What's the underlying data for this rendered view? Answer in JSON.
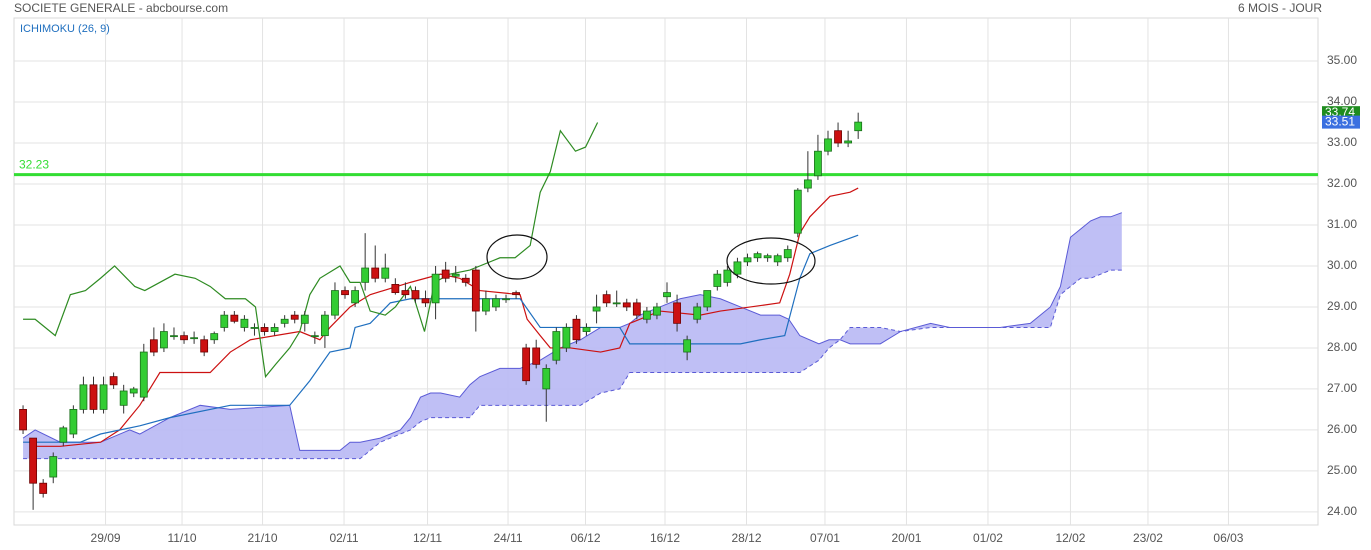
{
  "chart_data": {
    "type": "candlestick",
    "title": "SOCIETE GENERALE - abcbourse.com",
    "subtitle": "6 MOIS - JOUR",
    "indicator": "ICHIMOKU (26, 9)",
    "xlim": [
      -0.9,
      128.7
    ],
    "xticks": [
      {
        "value": 8.2,
        "label": "29/09"
      },
      {
        "value": 15.8,
        "label": "11/10"
      },
      {
        "value": 23.8,
        "label": "21/10"
      },
      {
        "value": 31.9,
        "label": "02/11"
      },
      {
        "value": 40.2,
        "label": "12/11"
      },
      {
        "value": 48.2,
        "label": "24/11"
      },
      {
        "value": 55.9,
        "label": "06/12"
      },
      {
        "value": 63.8,
        "label": "16/12"
      },
      {
        "value": 71.9,
        "label": "28/12"
      },
      {
        "value": 79.7,
        "label": "07/01"
      },
      {
        "value": 87.8,
        "label": "20/01"
      },
      {
        "value": 95.9,
        "label": "01/02"
      },
      {
        "value": 104.1,
        "label": "12/02"
      },
      {
        "value": 111.8,
        "label": "23/02"
      },
      {
        "value": 119.8,
        "label": "06/03"
      }
    ],
    "ylim": [
      23.68,
      36.05
    ],
    "yticks": [
      {
        "value": 24,
        "label": "24.00"
      },
      {
        "value": 25,
        "label": "25.00"
      },
      {
        "value": 26,
        "label": "26.00"
      },
      {
        "value": 27,
        "label": "27.00"
      },
      {
        "value": 28,
        "label": "28.00"
      },
      {
        "value": 29,
        "label": "29.00"
      },
      {
        "value": 30,
        "label": "30.00"
      },
      {
        "value": 31,
        "label": "31.00"
      },
      {
        "value": 32,
        "label": "32.00"
      },
      {
        "value": 33,
        "label": "33.00"
      },
      {
        "value": 34,
        "label": "34.00"
      },
      {
        "value": 35,
        "label": "35.00"
      }
    ],
    "grid": true,
    "up_color": "#33cc33",
    "down_color": "#cc1111",
    "open": [
      26.5,
      25.8,
      24.7,
      24.85,
      25.7,
      25.9,
      26.5,
      27.1,
      26.5,
      27.3,
      26.6,
      26.9,
      26.8,
      28.2,
      28.0,
      28.3,
      28.3,
      28.25,
      28.2,
      28.2,
      28.5,
      28.8,
      28.5,
      28.5,
      28.5,
      28.4,
      28.6,
      28.8,
      28.6,
      28.3,
      28.3,
      28.8,
      29.4,
      29.1,
      29.6,
      29.95,
      29.7,
      29.55,
      29.4,
      29.4,
      29.2,
      29.1,
      29.9,
      29.75,
      29.7,
      29.9,
      28.9,
      29.0,
      29.2,
      29.35,
      28.0,
      28.0,
      27.0,
      27.7,
      28.0,
      28.7,
      28.4,
      28.9,
      29.3,
      29.1,
      29.1,
      29.1,
      28.7,
      28.8,
      29.25,
      29.1,
      27.9,
      28.7,
      29.0,
      29.5,
      29.6,
      29.8,
      30.1,
      30.2,
      30.2,
      30.1,
      30.2,
      30.8,
      31.9,
      32.2,
      32.8,
      33.3,
      33.0,
      33.3
    ],
    "high": [
      26.6,
      25.8,
      24.8,
      25.45,
      26.1,
      26.6,
      27.3,
      27.3,
      27.3,
      27.4,
      27.1,
      27.05,
      28.1,
      28.5,
      28.6,
      28.5,
      28.4,
      28.4,
      28.3,
      28.4,
      28.9,
      28.9,
      28.8,
      28.6,
      28.6,
      28.6,
      28.8,
      28.9,
      28.9,
      28.4,
      28.9,
      29.6,
      29.5,
      29.5,
      30.8,
      30.5,
      30.3,
      29.7,
      29.6,
      29.5,
      29.4,
      30.0,
      30.1,
      30.0,
      29.8,
      30.0,
      29.4,
      29.3,
      29.3,
      29.4,
      28.1,
      28.2,
      27.6,
      28.5,
      28.6,
      28.8,
      28.6,
      29.3,
      29.4,
      29.4,
      29.2,
      29.2,
      29.0,
      29.1,
      29.6,
      29.3,
      28.3,
      29.1,
      29.4,
      29.9,
      30.0,
      30.2,
      30.3,
      30.35,
      30.3,
      30.3,
      30.5,
      31.9,
      32.8,
      33.2,
      33.3,
      33.5,
      33.3,
      33.74
    ],
    "low": [
      25.9,
      24.05,
      24.35,
      24.7,
      25.6,
      25.8,
      26.4,
      26.4,
      26.4,
      27.0,
      26.4,
      26.8,
      26.7,
      27.8,
      27.9,
      28.2,
      28.1,
      28.1,
      27.8,
      28.1,
      28.4,
      28.6,
      28.4,
      28.3,
      28.3,
      28.3,
      28.5,
      28.6,
      28.4,
      28.1,
      28.0,
      28.7,
      29.2,
      29.0,
      29.4,
      29.6,
      29.6,
      29.3,
      29.2,
      29.1,
      29.0,
      28.7,
      29.6,
      29.6,
      29.5,
      28.4,
      28.8,
      28.9,
      29.1,
      29.2,
      27.1,
      27.5,
      26.2,
      27.6,
      27.9,
      28.1,
      28.3,
      28.6,
      29.0,
      29.0,
      28.9,
      28.7,
      28.6,
      28.7,
      29.1,
      28.4,
      27.7,
      28.6,
      28.9,
      29.4,
      29.5,
      29.7,
      30.0,
      30.1,
      30.1,
      30.0,
      30.1,
      30.7,
      31.8,
      32.1,
      32.7,
      32.9,
      32.9,
      33.1
    ],
    "close": [
      26.0,
      24.7,
      24.45,
      25.35,
      26.05,
      26.5,
      27.1,
      26.5,
      27.1,
      27.1,
      26.95,
      27.0,
      27.9,
      27.9,
      28.4,
      28.3,
      28.2,
      28.25,
      27.9,
      28.35,
      28.8,
      28.65,
      28.7,
      28.5,
      28.4,
      28.5,
      28.7,
      28.7,
      28.8,
      28.3,
      28.8,
      29.4,
      29.3,
      29.4,
      29.95,
      29.7,
      29.95,
      29.35,
      29.3,
      29.2,
      29.1,
      29.8,
      29.7,
      29.8,
      29.6,
      28.9,
      29.2,
      29.2,
      29.2,
      29.3,
      27.2,
      27.6,
      27.5,
      28.4,
      28.5,
      28.2,
      28.5,
      29.0,
      29.1,
      29.1,
      29.0,
      28.8,
      28.9,
      29.0,
      29.35,
      28.6,
      28.2,
      29.0,
      29.4,
      29.8,
      29.9,
      30.1,
      30.2,
      30.3,
      30.25,
      30.25,
      30.4,
      31.85,
      32.1,
      32.8,
      33.1,
      33.0,
      33.05,
      33.51
    ],
    "lines": [
      {
        "color": "#cc1111",
        "x": [
          1,
          3.7,
          7.7,
          9.6,
          11.6,
          13.6,
          18.6,
          20.6,
          22.6,
          27.5,
          29.5,
          30.5,
          32.5,
          34.5,
          38.5,
          41.5,
          43.4,
          45.4,
          49.4,
          50.1,
          51.4,
          52.4,
          54.4,
          57.4,
          59.3,
          60.3,
          63.3,
          67.3,
          69.3,
          72.3,
          75.2,
          76.2,
          77.2,
          78.2,
          80.2,
          82.2,
          83
        ],
        "values": [
          25.6,
          25.6,
          25.7,
          26.0,
          26.6,
          27.4,
          27.4,
          27.9,
          28.2,
          28.4,
          28.2,
          28.5,
          29.0,
          29.3,
          29.6,
          29.8,
          29.7,
          29.4,
          29.3,
          28.7,
          28.3,
          28.0,
          28.0,
          27.9,
          28.0,
          28.6,
          28.9,
          28.8,
          28.9,
          29.0,
          29.1,
          29.8,
          30.8,
          31.2,
          31.7,
          31.8,
          31.9
        ]
      },
      {
        "color": "#1f6fbf",
        "x": [
          0,
          5.7,
          7.7,
          11.6,
          14.6,
          20.6,
          26.5,
          28.5,
          30.5,
          32.5,
          33,
          34.5,
          36.5,
          38.5,
          44.4,
          49.4,
          51.4,
          55.4,
          59.3,
          60.3,
          65.3,
          71.3,
          73.3,
          75.7,
          77.2,
          78.2,
          80.2,
          83
        ],
        "values": [
          25.7,
          25.7,
          25.9,
          26.1,
          26.3,
          26.6,
          26.6,
          27.2,
          27.9,
          28.0,
          28.5,
          28.6,
          29.1,
          29.2,
          29.2,
          29.2,
          28.5,
          28.5,
          28.5,
          28.1,
          28.1,
          28.1,
          28.2,
          28.3,
          29.7,
          30.3,
          30.5,
          30.75
        ]
      },
      {
        "color": "#2e8b22",
        "x": [
          0,
          1.2,
          3.2,
          4.7,
          6.2,
          7.7,
          9.1,
          11.1,
          12.1,
          15.1,
          17.1,
          18.6,
          20.1,
          22.1,
          23.1,
          24.1,
          25.1,
          26.5,
          27.5,
          28.5,
          29.5,
          31.5,
          32.5,
          33.5,
          34.5,
          36,
          37,
          38.5,
          39.9,
          40.9,
          42.4,
          44.4,
          46.4,
          47.4,
          48.9,
          50.4,
          51.4,
          52.4,
          53.4,
          54.9,
          55.9,
          57.1
        ],
        "values": [
          28.7,
          28.7,
          28.3,
          29.3,
          29.4,
          29.7,
          30.0,
          29.5,
          29.4,
          29.8,
          29.7,
          29.5,
          29.2,
          29.2,
          29.0,
          27.3,
          27.6,
          28.0,
          28.4,
          29.3,
          29.7,
          30.0,
          29.6,
          29.6,
          28.9,
          28.8,
          29.0,
          29.5,
          28.4,
          29.6,
          29.8,
          29.9,
          30.1,
          30.2,
          30.2,
          30.5,
          31.8,
          32.3,
          33.3,
          32.8,
          32.9,
          33.5
        ]
      }
    ],
    "cloud": {
      "color": "#b8b8f4",
      "line_color": "#5a5ad6",
      "x": [
        0,
        1.2,
        3.7,
        7.7,
        10.6,
        11.6,
        14.6,
        17.6,
        20.6,
        26.5,
        27.5,
        31.5,
        32.5,
        33.5,
        35.5,
        37.5,
        38.5,
        39.5,
        40.5,
        41.5,
        43.4,
        44.4,
        45.4,
        47.4,
        49.4,
        51.4,
        53.4,
        55.4,
        57.4,
        59.3,
        60.3,
        61.3,
        63.3,
        65.3,
        67.3,
        69.3,
        71.3,
        73.3,
        75.2,
        76.1,
        77.2,
        79.1,
        80.1,
        81.2,
        82.2,
        85.2,
        87.2,
        90.2,
        92.1,
        96.1,
        97.1,
        100.1,
        102.1,
        103.1,
        104.1,
        105.1,
        106.1,
        107.1,
        108.1,
        109.2
      ],
      "span_a": [
        25.8,
        26.0,
        25.7,
        25.7,
        26.0,
        25.9,
        26.3,
        26.6,
        26.5,
        26.6,
        25.5,
        25.5,
        25.7,
        25.7,
        25.8,
        26.0,
        26.3,
        26.8,
        26.9,
        26.9,
        26.8,
        27.1,
        27.3,
        27.5,
        27.5,
        27.7,
        28.0,
        28.2,
        28.5,
        28.5,
        28.6,
        28.8,
        29.0,
        29.2,
        29.3,
        29.2,
        29.0,
        28.8,
        28.8,
        28.7,
        28.3,
        28.1,
        28.2,
        28.2,
        28.1,
        28.1,
        28.4,
        28.6,
        28.5,
        28.5,
        28.5,
        28.6,
        29.0,
        29.5,
        30.7,
        30.9,
        31.1,
        31.2,
        31.2,
        31.3
      ],
      "span_b": [
        25.3,
        25.3,
        25.3,
        25.3,
        25.3,
        25.3,
        25.3,
        25.3,
        25.3,
        25.3,
        25.3,
        25.3,
        25.3,
        25.3,
        25.7,
        25.9,
        26.0,
        26.2,
        26.3,
        26.3,
        26.3,
        26.3,
        26.6,
        26.6,
        26.6,
        26.6,
        26.6,
        26.6,
        26.9,
        27.0,
        27.4,
        27.4,
        27.4,
        27.4,
        27.4,
        27.4,
        27.4,
        27.4,
        27.4,
        27.4,
        27.4,
        27.7,
        28.0,
        28.2,
        28.5,
        28.5,
        28.4,
        28.5,
        28.5,
        28.5,
        28.5,
        28.5,
        28.5,
        29.3,
        29.5,
        29.7,
        29.7,
        29.8,
        29.9,
        29.9
      ]
    },
    "level": {
      "value": 32.23,
      "color": "#33dd33"
    },
    "price_tags": [
      {
        "value": 33.74,
        "color": "#1e8c1e"
      },
      {
        "value": 33.51,
        "color": "#3a6fe0"
      }
    ]
  }
}
